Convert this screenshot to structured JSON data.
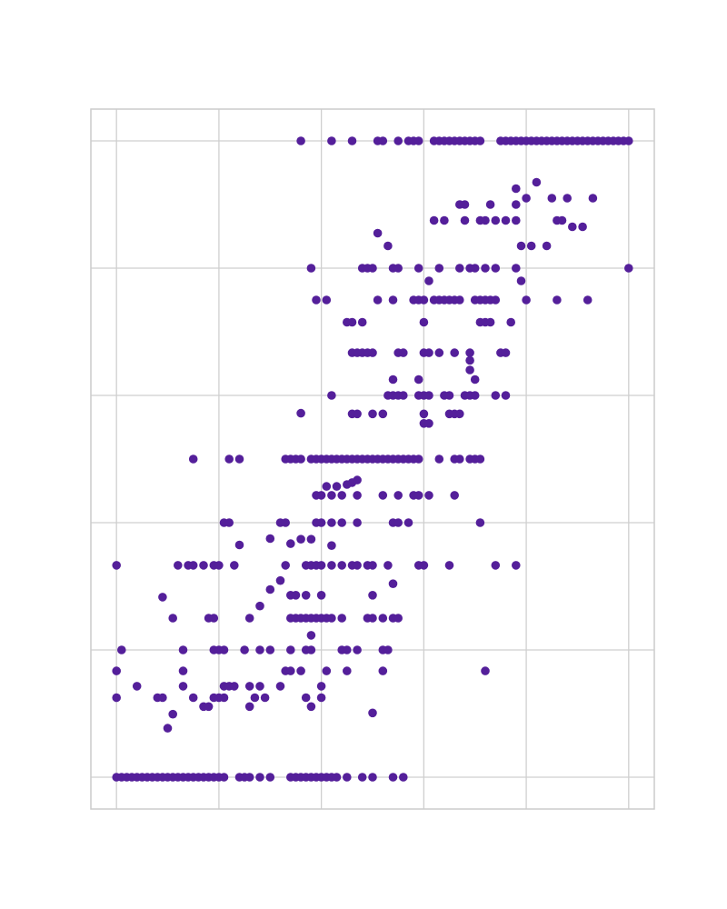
{
  "chart_data": {
    "type": "scatter",
    "title": "",
    "xlabel": "",
    "ylabel": "",
    "xlim": [
      -0.05,
      1.05
    ],
    "ylim": [
      -0.05,
      1.05
    ],
    "xticks": [
      0,
      0.2,
      0.4,
      0.6,
      0.8,
      1.0
    ],
    "yticks": [
      0,
      0.2,
      0.4,
      0.6,
      0.8,
      1.0
    ],
    "grid": true,
    "legend": "none",
    "color": "#541f9a",
    "series": [
      {
        "x": [
          0.36,
          0.42,
          0.46,
          0.51,
          0.52,
          0.55,
          0.57,
          0.58,
          0.59,
          0.62,
          0.63,
          0.64,
          0.65,
          0.66,
          0.67,
          0.68,
          0.69,
          0.7,
          0.71,
          0.75,
          0.76,
          0.77,
          0.78,
          0.79,
          0.8,
          0.81,
          0.82,
          0.83,
          0.84,
          0.85,
          0.86,
          0.87,
          0.88,
          0.89,
          0.9,
          0.91,
          0.92,
          0.93,
          0.94,
          0.95,
          0.96,
          0.97,
          0.98,
          0.99,
          1.0,
          0.82,
          0.78,
          0.8,
          0.85,
          0.88,
          0.93,
          0.67,
          0.68,
          0.73,
          0.78,
          0.62,
          0.64,
          0.68,
          0.71,
          0.72,
          0.74,
          0.76,
          0.78,
          0.86,
          0.87,
          0.89,
          0.91,
          0.51,
          0.53,
          0.79,
          0.81,
          0.84,
          0.38,
          0.48,
          0.49,
          0.5,
          0.54,
          0.55,
          0.59,
          0.63,
          0.67,
          0.69,
          0.7,
          0.72,
          0.74,
          0.78,
          1.0,
          0.61,
          0.79,
          0.39,
          0.41,
          0.51,
          0.54,
          0.58,
          0.59,
          0.6,
          0.62,
          0.63,
          0.64,
          0.65,
          0.66,
          0.67,
          0.7,
          0.71,
          0.72,
          0.73,
          0.74,
          0.8,
          0.86,
          0.92,
          0.45,
          0.46,
          0.48,
          0.6,
          0.71,
          0.72,
          0.73,
          0.77,
          0.46,
          0.47,
          0.48,
          0.49,
          0.5,
          0.55,
          0.56,
          0.6,
          0.61,
          0.63,
          0.66,
          0.69,
          0.75,
          0.76,
          0.69,
          0.69,
          0.54,
          0.59,
          0.7,
          0.42,
          0.53,
          0.54,
          0.55,
          0.56,
          0.59,
          0.6,
          0.61,
          0.64,
          0.65,
          0.68,
          0.69,
          0.7,
          0.74,
          0.76,
          0.46,
          0.47,
          0.5,
          0.52,
          0.6,
          0.65,
          0.66,
          0.67,
          0.36,
          0.6,
          0.61,
          0.15,
          0.22,
          0.24,
          0.33,
          0.34,
          0.35,
          0.36,
          0.38,
          0.39,
          0.4,
          0.41,
          0.42,
          0.43,
          0.44,
          0.45,
          0.46,
          0.47,
          0.48,
          0.49,
          0.5,
          0.51,
          0.52,
          0.53,
          0.54,
          0.55,
          0.56,
          0.57,
          0.58,
          0.59,
          0.63,
          0.66,
          0.67,
          0.69,
          0.7,
          0.71,
          0.45,
          0.46,
          0.47,
          0.39,
          0.4,
          0.42,
          0.44,
          0.47,
          0.52,
          0.55,
          0.58,
          0.59,
          0.61,
          0.66,
          0.41,
          0.43,
          0.21,
          0.22,
          0.32,
          0.33,
          0.39,
          0.4,
          0.42,
          0.44,
          0.47,
          0.54,
          0.55,
          0.57,
          0.71,
          0.24,
          0.3,
          0.36,
          0.38,
          0.34,
          0.42,
          0.0,
          0.12,
          0.14,
          0.15,
          0.17,
          0.19,
          0.2,
          0.23,
          0.33,
          0.37,
          0.38,
          0.39,
          0.4,
          0.42,
          0.44,
          0.46,
          0.47,
          0.49,
          0.5,
          0.53,
          0.59,
          0.6,
          0.65,
          0.74,
          0.78,
          0.32,
          0.34,
          0.35,
          0.37,
          0.4,
          0.5,
          0.54,
          0.11,
          0.18,
          0.19,
          0.26,
          0.34,
          0.35,
          0.36,
          0.37,
          0.38,
          0.39,
          0.4,
          0.41,
          0.42,
          0.44,
          0.49,
          0.5,
          0.52,
          0.54,
          0.55,
          0.09,
          0.28,
          0.3,
          0.38,
          0.01,
          0.13,
          0.19,
          0.2,
          0.21,
          0.25,
          0.28,
          0.3,
          0.34,
          0.37,
          0.38,
          0.44,
          0.45,
          0.47,
          0.52,
          0.53,
          0.0,
          0.13,
          0.33,
          0.34,
          0.36,
          0.41,
          0.45,
          0.52,
          0.72,
          0.04,
          0.13,
          0.21,
          0.22,
          0.23,
          0.26,
          0.28,
          0.32,
          0.4,
          0.0,
          0.08,
          0.09,
          0.15,
          0.19,
          0.2,
          0.21,
          0.27,
          0.29,
          0.37,
          0.4,
          0.17,
          0.18,
          0.26,
          0.38,
          0.5,
          0.11,
          0.1,
          0.0,
          0.01,
          0.02,
          0.03,
          0.04,
          0.05,
          0.06,
          0.07,
          0.08,
          0.09,
          0.1,
          0.11,
          0.12,
          0.13,
          0.14,
          0.15,
          0.16,
          0.17,
          0.18,
          0.19,
          0.2,
          0.21,
          0.24,
          0.25,
          0.26,
          0.28,
          0.3,
          0.34,
          0.35,
          0.36,
          0.37,
          0.38,
          0.39,
          0.4,
          0.41,
          0.42,
          0.43,
          0.45,
          0.48,
          0.5,
          0.54,
          0.56
        ],
        "y": [
          1,
          1,
          1,
          1,
          1,
          1,
          1,
          1,
          1,
          1,
          1,
          1,
          1,
          1,
          1,
          1,
          1,
          1,
          1,
          1,
          1,
          1,
          1,
          1,
          1,
          1,
          1,
          1,
          1,
          1,
          1,
          1,
          1,
          1,
          1,
          1,
          1,
          1,
          1,
          1,
          1,
          1,
          1,
          1,
          1,
          0.935,
          0.925,
          0.91,
          0.91,
          0.91,
          0.91,
          0.9,
          0.9,
          0.9,
          0.9,
          0.875,
          0.875,
          0.875,
          0.875,
          0.875,
          0.875,
          0.875,
          0.875,
          0.875,
          0.875,
          0.865,
          0.865,
          0.855,
          0.835,
          0.835,
          0.835,
          0.835,
          0.8,
          0.8,
          0.8,
          0.8,
          0.8,
          0.8,
          0.8,
          0.8,
          0.8,
          0.8,
          0.8,
          0.8,
          0.8,
          0.8,
          0.8,
          0.78,
          0.78,
          0.75,
          0.75,
          0.75,
          0.75,
          0.75,
          0.75,
          0.75,
          0.75,
          0.75,
          0.75,
          0.75,
          0.75,
          0.75,
          0.75,
          0.75,
          0.75,
          0.75,
          0.75,
          0.75,
          0.75,
          0.75,
          0.715,
          0.715,
          0.715,
          0.715,
          0.715,
          0.715,
          0.715,
          0.715,
          0.667,
          0.667,
          0.667,
          0.667,
          0.667,
          0.667,
          0.667,
          0.667,
          0.667,
          0.667,
          0.667,
          0.667,
          0.667,
          0.667,
          0.64,
          0.655,
          0.625,
          0.625,
          0.625,
          0.6,
          0.6,
          0.6,
          0.6,
          0.6,
          0.6,
          0.6,
          0.6,
          0.6,
          0.6,
          0.6,
          0.6,
          0.6,
          0.6,
          0.6,
          0.571,
          0.571,
          0.571,
          0.571,
          0.571,
          0.571,
          0.571,
          0.571,
          0.572,
          0.556,
          0.556,
          0.5,
          0.5,
          0.5,
          0.5,
          0.5,
          0.5,
          0.5,
          0.5,
          0.5,
          0.5,
          0.5,
          0.5,
          0.5,
          0.5,
          0.5,
          0.5,
          0.5,
          0.5,
          0.5,
          0.5,
          0.5,
          0.5,
          0.5,
          0.5,
          0.5,
          0.5,
          0.5,
          0.5,
          0.5,
          0.5,
          0.5,
          0.5,
          0.5,
          0.5,
          0.5,
          0.46,
          0.463,
          0.467,
          0.443,
          0.443,
          0.443,
          0.443,
          0.443,
          0.443,
          0.443,
          0.443,
          0.443,
          0.443,
          0.443,
          0.457,
          0.457,
          0.4,
          0.4,
          0.4,
          0.4,
          0.4,
          0.4,
          0.4,
          0.4,
          0.4,
          0.4,
          0.4,
          0.4,
          0.4,
          0.365,
          0.375,
          0.374,
          0.374,
          0.367,
          0.364,
          0.333,
          0.333,
          0.333,
          0.333,
          0.333,
          0.333,
          0.333,
          0.333,
          0.333,
          0.333,
          0.333,
          0.333,
          0.333,
          0.333,
          0.333,
          0.333,
          0.333,
          0.333,
          0.333,
          0.333,
          0.333,
          0.333,
          0.333,
          0.333,
          0.333,
          0.309,
          0.286,
          0.286,
          0.286,
          0.286,
          0.286,
          0.304,
          0.25,
          0.25,
          0.25,
          0.25,
          0.25,
          0.25,
          0.25,
          0.25,
          0.25,
          0.25,
          0.25,
          0.25,
          0.25,
          0.25,
          0.25,
          0.25,
          0.25,
          0.25,
          0.25,
          0.283,
          0.269,
          0.295,
          0.223,
          0.2,
          0.2,
          0.2,
          0.2,
          0.2,
          0.2,
          0.2,
          0.2,
          0.2,
          0.2,
          0.2,
          0.2,
          0.2,
          0.2,
          0.2,
          0.2,
          0.167,
          0.167,
          0.167,
          0.167,
          0.167,
          0.167,
          0.167,
          0.167,
          0.167,
          0.143,
          0.143,
          0.143,
          0.143,
          0.143,
          0.143,
          0.143,
          0.143,
          0.143,
          0.125,
          0.125,
          0.125,
          0.125,
          0.125,
          0.125,
          0.125,
          0.125,
          0.125,
          0.125,
          0.125,
          0.111,
          0.111,
          0.111,
          0.111,
          0.101,
          0.099,
          0.077,
          0,
          0,
          0,
          0,
          0,
          0,
          0,
          0,
          0,
          0,
          0,
          0,
          0,
          0,
          0,
          0,
          0,
          0,
          0,
          0,
          0,
          0,
          0,
          0,
          0,
          0,
          0,
          0,
          0,
          0,
          0,
          0,
          0,
          0,
          0,
          0,
          0,
          0,
          0,
          0,
          0,
          0
        ]
      }
    ]
  }
}
